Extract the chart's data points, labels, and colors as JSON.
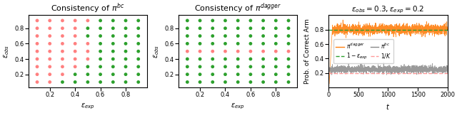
{
  "title1": "Consistency of $\\pi^{bc}$",
  "title2": "Consistency of $\\pi^{dagger}$",
  "title3": "$\\epsilon_{obs} = 0.3, \\epsilon_{exp} = 0.2$",
  "xlabel1": "$\\epsilon_{exp}$",
  "xlabel2": "$\\epsilon_{exp}$",
  "xlabel3": "$t$",
  "ylabel1": "$\\epsilon_{obs}$",
  "ylabel2": "$\\epsilon_{obs}$",
  "ylabel3": "Prob. of Correct Arm",
  "eps_vals": [
    0.1,
    0.2,
    0.3,
    0.4,
    0.5,
    0.6,
    0.7,
    0.8,
    0.9
  ],
  "green_color": "#2ca02c",
  "red_color": "#ff8080",
  "orange_color": "#ff7f0e",
  "gray_color": "#888888",
  "dagger_green_dashed": "#2ca02c",
  "bc_red_dashed": "#ff9999",
  "one_minus_eps_exp": 0.8,
  "one_over_K": 0.2,
  "t_max": 2000,
  "bc_colors": [
    [
      0,
      0,
      0,
      0,
      0,
      1,
      1,
      1,
      1
    ],
    [
      0,
      0,
      0,
      0,
      1,
      1,
      1,
      1,
      1
    ],
    [
      0,
      0,
      0,
      0,
      1,
      1,
      1,
      1,
      1
    ],
    [
      0,
      0,
      0,
      0,
      1,
      1,
      1,
      1,
      1
    ],
    [
      0,
      0,
      0,
      0,
      0,
      1,
      1,
      1,
      1
    ],
    [
      0,
      0,
      0,
      0,
      0,
      0,
      1,
      1,
      1
    ],
    [
      0,
      0,
      0,
      0,
      0,
      0,
      0,
      1,
      1
    ],
    [
      0,
      0,
      0,
      0,
      0,
      0,
      0,
      0,
      1
    ],
    [
      0,
      0,
      0,
      0,
      0,
      0,
      0,
      0,
      1
    ]
  ],
  "dagger_colors": [
    [
      1,
      1,
      1,
      1,
      1,
      1,
      1,
      1,
      1
    ],
    [
      1,
      1,
      1,
      1,
      1,
      1,
      1,
      1,
      1
    ],
    [
      1,
      1,
      1,
      1,
      1,
      1,
      1,
      1,
      1
    ],
    [
      1,
      1,
      1,
      1,
      1,
      1,
      1,
      1,
      1
    ],
    [
      0,
      0,
      0,
      0,
      0,
      0,
      0,
      0,
      0
    ],
    [
      1,
      1,
      1,
      1,
      1,
      1,
      1,
      1,
      1
    ],
    [
      1,
      1,
      1,
      1,
      1,
      1,
      1,
      1,
      1
    ],
    [
      1,
      1,
      1,
      1,
      1,
      1,
      1,
      1,
      1
    ],
    [
      1,
      1,
      1,
      1,
      1,
      1,
      1,
      1,
      1
    ]
  ],
  "figsize": [
    6.4,
    1.59
  ],
  "dpi": 100
}
